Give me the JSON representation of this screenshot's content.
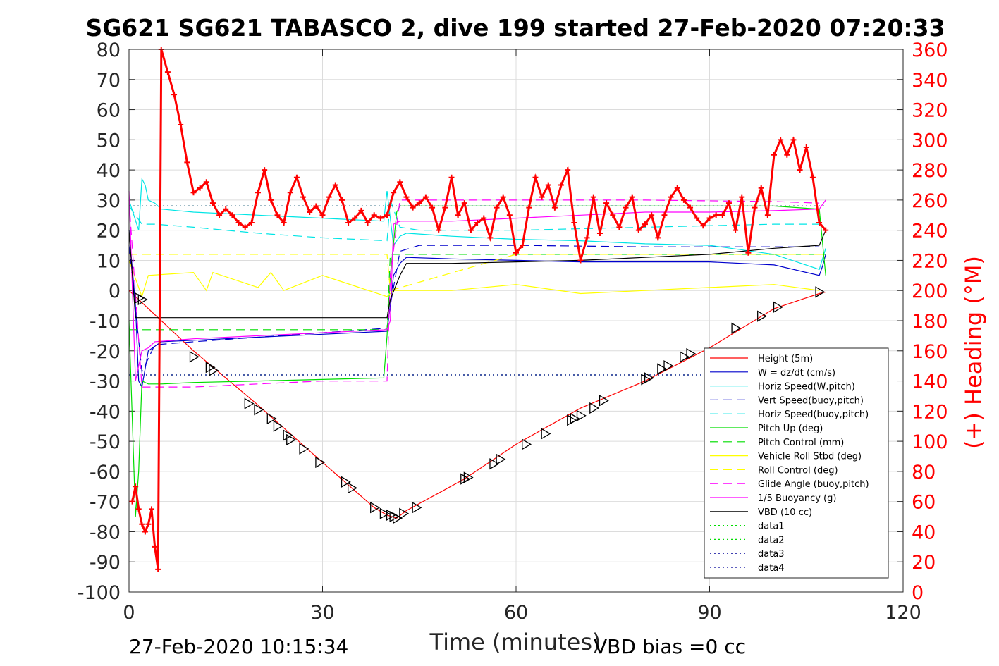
{
  "chart_data": {
    "type": "line",
    "title": "SG621 SG621 TABASCO 2, dive 199 started 27-Feb-2020 07:20:33",
    "xlabel": "Time (minutes)",
    "ylabel": "",
    "y2label": "(+) Heading (°M)",
    "xlim": [
      0,
      120
    ],
    "ylim": [
      -100,
      80
    ],
    "y2lim": [
      0,
      360
    ],
    "xticks": [
      "0",
      "30",
      "60",
      "90",
      "120"
    ],
    "xtick_values": [
      0,
      30,
      60,
      90,
      120
    ],
    "yticks": [
      "80",
      "70",
      "60",
      "50",
      "40",
      "30",
      "20",
      "10",
      "0",
      "-10",
      "-20",
      "-30",
      "-40",
      "-50",
      "-60",
      "-70",
      "-80",
      "-90",
      "-100"
    ],
    "ytick_values": [
      80,
      70,
      60,
      50,
      40,
      30,
      20,
      10,
      0,
      -10,
      -20,
      -30,
      -40,
      -50,
      -60,
      -70,
      -80,
      -90,
      -100
    ],
    "y2ticks": [
      "360",
      "340",
      "320",
      "300",
      "280",
      "260",
      "240",
      "220",
      "200",
      "180",
      "160",
      "140",
      "120",
      "100",
      "80",
      "60",
      "40",
      "20",
      "0"
    ],
    "y2tick_values": [
      360,
      340,
      320,
      300,
      280,
      260,
      240,
      220,
      200,
      180,
      160,
      140,
      120,
      100,
      80,
      60,
      40,
      20,
      0
    ],
    "grid": true,
    "legend_position": "lower-right",
    "footer_left": "27-Feb-2020 10:15:34",
    "footer_right": "VBD bias =0 cc",
    "series": [
      {
        "name": "Height (5m)",
        "color": "#ff0000",
        "dash": "solid",
        "x": [
          0,
          1.5,
          10,
          20,
          30,
          38,
          40,
          41.5,
          43,
          52,
          60,
          70,
          80,
          90,
          100,
          107,
          108
        ],
        "y": [
          0,
          -3,
          -20,
          -38,
          -57,
          -72,
          -74.5,
          -75.5,
          -73,
          -62.5,
          -51,
          -39,
          -30,
          -19,
          -6,
          -1,
          -0.5
        ]
      },
      {
        "name": "W = dz/dt (cm/s)",
        "color": "#0000cc",
        "dash": "solid",
        "x": [
          0,
          1,
          1.5,
          2,
          3,
          5,
          10,
          20,
          30,
          40,
          40.5,
          41,
          42,
          43,
          50,
          60,
          70,
          80,
          90,
          100,
          107,
          107.5,
          108
        ],
        "y": [
          20,
          -5,
          -30,
          -32,
          -20,
          -17,
          -16.5,
          -15.5,
          -14.5,
          -13.5,
          -5,
          5,
          9,
          11,
          10.5,
          10,
          9.5,
          9.5,
          9.5,
          8.5,
          5,
          8,
          12
        ]
      },
      {
        "name": "Horiz Speed(W,pitch)",
        "color": "#00e5e5",
        "dash": "solid",
        "x": [
          0,
          1.5,
          2,
          2.5,
          3,
          4,
          5,
          10,
          20,
          30,
          39.5,
          40,
          41,
          42,
          43,
          50,
          60,
          70,
          80,
          90,
          100,
          107,
          108
        ],
        "y": [
          30,
          20,
          37,
          35,
          30,
          29,
          27,
          26,
          25,
          24,
          23,
          33,
          15,
          18,
          19,
          18,
          17,
          16.5,
          15.5,
          15,
          12,
          7,
          14
        ]
      },
      {
        "name": "Vert Speed(buoy,pitch)",
        "color": "#0000cc",
        "dash": "long",
        "x": [
          0,
          2,
          4,
          10,
          20,
          30,
          40,
          40.5,
          42,
          45,
          60,
          80,
          100,
          107
        ],
        "y": [
          15,
          -27,
          -18,
          -17,
          -15.5,
          -14,
          -12.5,
          -5,
          13,
          15,
          15,
          14.5,
          14.5,
          14.5
        ]
      },
      {
        "name": "Horiz Speed(buoy,pitch)",
        "color": "#00e5e5",
        "dash": "long",
        "x": [
          0,
          2,
          4,
          10,
          20,
          30,
          40,
          40.5,
          42,
          45,
          60,
          80,
          100,
          107
        ],
        "y": [
          28,
          22,
          22,
          21,
          19,
          17.5,
          16.5,
          30,
          21,
          20,
          20,
          21,
          22,
          22
        ]
      },
      {
        "name": "Pitch Up (deg)",
        "color": "#00dd00",
        "dash": "solid",
        "x": [
          0,
          1,
          1.5,
          2,
          3,
          5,
          10,
          20,
          30,
          39.5,
          40,
          40.5,
          41.5,
          42,
          50,
          60,
          80,
          100,
          107,
          108
        ],
        "y": [
          -10,
          -75,
          -60,
          -30,
          -31,
          -31,
          -30.5,
          -30,
          -29.5,
          -29,
          -15,
          5,
          26,
          28,
          28,
          28,
          28,
          28,
          27,
          5
        ]
      },
      {
        "name": "Pitch Control (mm)",
        "color": "#00dd00",
        "dash": "long",
        "x": [
          0,
          1.5,
          2,
          40,
          40.5,
          42,
          108
        ],
        "y": [
          -13,
          -13,
          -13,
          -13,
          12,
          12,
          12
        ]
      },
      {
        "name": "Vehicle Roll Stbd (deg)",
        "color": "#ffff00",
        "dash": "solid",
        "x": [
          0,
          2,
          3,
          10,
          12,
          13,
          20,
          22,
          24,
          30,
          40,
          41,
          42,
          45,
          50,
          60,
          70,
          80,
          90,
          100,
          107
        ],
        "y": [
          10,
          -2,
          5,
          6,
          0,
          6,
          1,
          6,
          0,
          5,
          -2,
          0,
          0,
          0,
          0,
          2,
          -1,
          0,
          1,
          2,
          0
        ]
      },
      {
        "name": "Roll Control (deg)",
        "color": "#ffff00",
        "dash": "long",
        "x": [
          0,
          1,
          3,
          40,
          40.5,
          60,
          80,
          100,
          108
        ],
        "y": [
          12,
          12,
          12,
          12,
          0,
          12,
          12,
          12,
          12
        ]
      },
      {
        "name": "Glide Angle (buoy,pitch)",
        "color": "#ff00ff",
        "dash": "long",
        "x": [
          0,
          2,
          4,
          10,
          20,
          30,
          40,
          40.5,
          42,
          60,
          80,
          100,
          107
        ],
        "y": [
          30,
          -32,
          -32,
          -32,
          -31,
          -30,
          -30,
          5,
          30,
          30,
          30,
          29.5,
          29
        ]
      },
      {
        "name": "1/5 Buoyancy (g)",
        "color": "#ff00ff",
        "dash": "solid",
        "x": [
          0,
          1,
          2,
          3,
          4,
          10,
          20,
          30,
          40,
          40.5,
          41,
          42,
          50,
          60,
          70,
          80,
          90,
          100,
          107,
          108
        ],
        "y": [
          33,
          -30,
          -20,
          -19,
          -17,
          -16,
          -15,
          -14,
          -13,
          -10,
          22,
          23,
          23,
          24,
          25,
          26,
          26,
          26.5,
          27,
          30
        ]
      },
      {
        "name": "VBD (10 cc)",
        "color": "#000000",
        "dash": "solid",
        "x": [
          0,
          1,
          2,
          40,
          40.5,
          42,
          43,
          50,
          60,
          70,
          80,
          90,
          100,
          107,
          108
        ],
        "y": [
          20,
          -9,
          -9,
          -9,
          -3,
          5,
          9,
          9,
          9.5,
          10,
          11,
          12,
          14,
          15,
          20
        ]
      },
      {
        "name": "data1",
        "color": "#00dd00",
        "dash": "dot",
        "x": [
          0,
          108
        ],
        "y": [
          28,
          28
        ]
      },
      {
        "name": "data2",
        "color": "#00dd00",
        "dash": "dot",
        "x": [
          0,
          108
        ],
        "y": [
          -28,
          -28
        ]
      },
      {
        "name": "data3",
        "color": "#000099",
        "dash": "dot",
        "x": [
          0,
          108
        ],
        "y": [
          28,
          28
        ]
      },
      {
        "name": "data4",
        "color": "#000099",
        "dash": "dot",
        "x": [
          0,
          108
        ],
        "y": [
          -28,
          -28
        ]
      }
    ],
    "heading": {
      "name": "(+) Heading",
      "color": "#ff0000",
      "x": [
        0.5,
        1,
        1.5,
        2,
        2.5,
        3,
        3.5,
        4,
        4.5,
        5,
        6,
        7,
        8,
        9,
        10,
        11,
        12,
        13,
        14,
        15,
        16,
        17,
        18,
        19,
        20,
        21,
        22,
        23,
        24,
        25,
        26,
        27,
        28,
        29,
        30,
        31,
        32,
        33,
        34,
        35,
        36,
        37,
        38,
        39,
        40,
        41,
        42,
        43,
        44,
        45,
        46,
        47,
        48,
        49,
        50,
        51,
        52,
        53,
        54,
        55,
        56,
        57,
        58,
        59,
        60,
        61,
        62,
        63,
        64,
        65,
        66,
        67,
        68,
        69,
        70,
        71,
        72,
        73,
        74,
        75,
        76,
        77,
        78,
        79,
        80,
        81,
        82,
        83,
        84,
        85,
        86,
        87,
        88,
        89,
        90,
        91,
        92,
        93,
        94,
        95,
        96,
        97,
        98,
        99,
        100,
        101,
        102,
        103,
        104,
        105,
        106,
        107,
        108
      ],
      "y": [
        60,
        70,
        55,
        45,
        40,
        45,
        55,
        30,
        15,
        360,
        345,
        330,
        310,
        285,
        265,
        268,
        272,
        258,
        250,
        254,
        250,
        245,
        242,
        245,
        265,
        280,
        260,
        250,
        245,
        265,
        275,
        262,
        252,
        256,
        250,
        262,
        270,
        260,
        245,
        248,
        253,
        245,
        250,
        248,
        250,
        265,
        272,
        262,
        255,
        258,
        262,
        255,
        240,
        255,
        275,
        250,
        258,
        240,
        245,
        248,
        235,
        255,
        262,
        250,
        225,
        230,
        255,
        275,
        262,
        270,
        255,
        270,
        280,
        245,
        220,
        235,
        262,
        238,
        258,
        250,
        242,
        255,
        262,
        240,
        244,
        250,
        235,
        250,
        262,
        268,
        260,
        255,
        248,
        243,
        248,
        250,
        250,
        258,
        240,
        262,
        225,
        255,
        268,
        250,
        290,
        300,
        290,
        300,
        280,
        295,
        275,
        245,
        240
      ]
    },
    "markers": {
      "name": "Height markers",
      "x": [
        1.5,
        2,
        10,
        12.5,
        13,
        18.5,
        20,
        22,
        23,
        24.5,
        25,
        27,
        29.5,
        33.5,
        34.5,
        38,
        39.5,
        40.5,
        41,
        41.5,
        42.5,
        44.5,
        52,
        52.5,
        56.5,
        57.5,
        61.5,
        64.5,
        68.5,
        69,
        70,
        72,
        73.5,
        80,
        80.5,
        82.5,
        83.5,
        86,
        87,
        94,
        98,
        100.5,
        107
      ],
      "y": [
        -2.5,
        -3,
        -22,
        -25.5,
        -26.5,
        -37.5,
        -39.5,
        -42.5,
        -45,
        -48,
        -49.5,
        -52.5,
        -57,
        -63.5,
        -65.5,
        -72,
        -74,
        -74.5,
        -75,
        -75.5,
        -74,
        -72,
        -62.5,
        -62,
        -57.5,
        -56,
        -51,
        -47.5,
        -43,
        -42.5,
        -41.5,
        -39,
        -36.5,
        -29.5,
        -29,
        -26,
        -25,
        -22,
        -21,
        -12.5,
        -8.5,
        -5.5,
        -0.5
      ]
    }
  }
}
